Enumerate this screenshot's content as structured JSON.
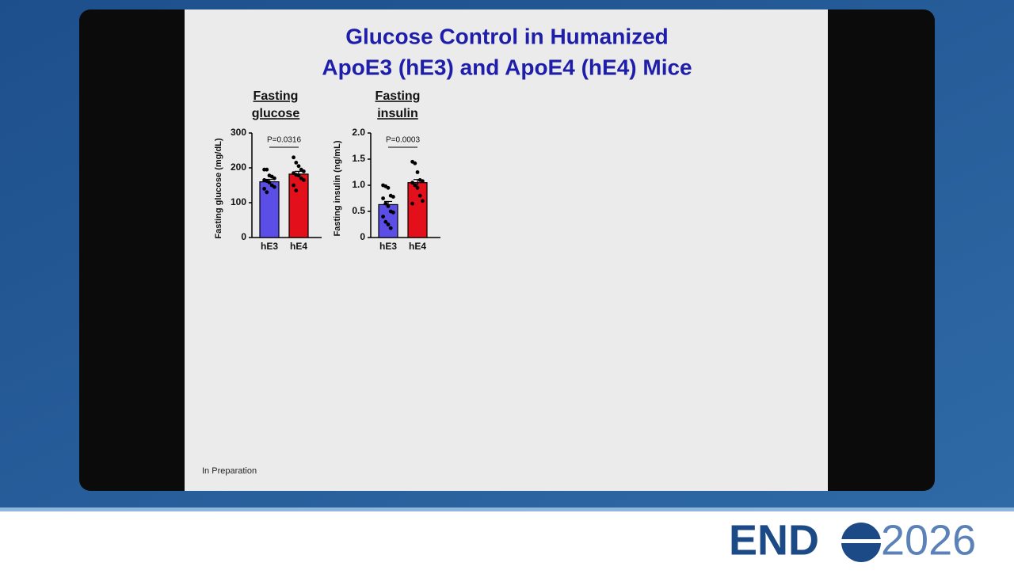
{
  "slide": {
    "title": [
      "Glucose Control in Humanized",
      "ApoE3 (hE3) and ApoE4 (hE4) Mice"
    ],
    "footnote": "In Preparation"
  },
  "charts": [
    {
      "type": "bar",
      "title": [
        "Fasting",
        "glucose"
      ],
      "y_label": "Fasting glucose (mg/dL)",
      "categories": [
        "hE3",
        "hE4"
      ],
      "values": [
        160,
        182
      ],
      "errors": [
        7,
        8
      ],
      "colors": [
        "#5a4ee6",
        "#e3101c"
      ],
      "points": [
        [
          195,
          195,
          178,
          175,
          170,
          165,
          162,
          158,
          150,
          145,
          140,
          130
        ],
        [
          230,
          215,
          205,
          195,
          190,
          185,
          180,
          178,
          170,
          165,
          150,
          135
        ]
      ],
      "annotation": "P=0.0316",
      "ylim": [
        0,
        300
      ],
      "yticks": [
        0,
        100,
        200,
        300
      ]
    },
    {
      "type": "bar",
      "title": [
        "Fasting",
        "insulin"
      ],
      "y_label": "Fasting insulin (ng/mL)",
      "categories": [
        "hE3",
        "hE4"
      ],
      "values": [
        0.63,
        1.05
      ],
      "errors": [
        0.06,
        0.06
      ],
      "colors": [
        "#5a4ee6",
        "#e3101c"
      ],
      "points": [
        [
          1.0,
          0.98,
          0.95,
          0.8,
          0.78,
          0.75,
          0.65,
          0.6,
          0.5,
          0.48,
          0.4,
          0.3,
          0.25,
          0.18
        ],
        [
          1.45,
          1.42,
          1.25,
          1.1,
          1.08,
          1.05,
          1.0,
          0.95,
          0.8,
          0.7,
          0.65
        ]
      ],
      "annotation": "P=0.0003",
      "ylim": [
        0,
        2
      ],
      "yticks": [
        0,
        0.5,
        {
          "value": 1,
          "label": "1.0"
        },
        1.5,
        {
          "value": 2,
          "label": "2.0"
        }
      ]
    }
  ],
  "logo": {
    "text": "END",
    "year": "2026"
  }
}
